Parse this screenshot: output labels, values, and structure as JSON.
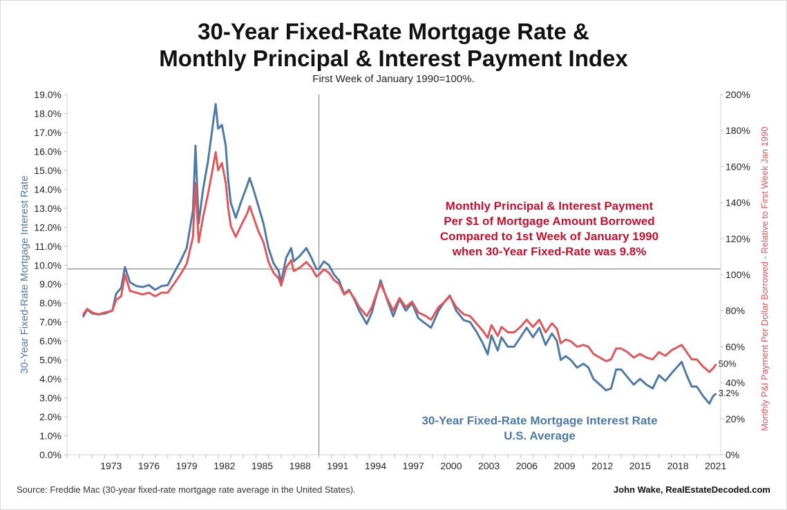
{
  "title_line1": "30-Year Fixed-Rate Mortgage Rate &",
  "title_line2": "Monthly Principal & Interest Payment Index",
  "subtitle": "First Week of January 1990=100%.",
  "footer": {
    "source": "Source: Freddie Mac (30-year fixed-rate mortgage rate average in the United States).",
    "credit": "John Wake, RealEstateDecoded.com"
  },
  "chart_data": {
    "type": "line",
    "x_range": [
      1970,
      2021.9
    ],
    "x_ticks": [
      "1973",
      "1976",
      "1979",
      "1982",
      "1985",
      "1988",
      "1991",
      "1994",
      "1997",
      "2000",
      "2003",
      "2006",
      "2009",
      "2012",
      "2015",
      "2018",
      "2021"
    ],
    "y_left": {
      "label": "30-Year Fixed-Rate Mortgage Interest Rate",
      "range": [
        0,
        19
      ],
      "ticks": [
        "0.0%",
        "1.0%",
        "2.0%",
        "3.0%",
        "4.0%",
        "5.0%",
        "6.0%",
        "7.0%",
        "8.0%",
        "9.0%",
        "10.0%",
        "11.0%",
        "12.0%",
        "13.0%",
        "14.0%",
        "15.0%",
        "16.0%",
        "17.0%",
        "18.0%",
        "19.0%"
      ],
      "color": "#4e79a7"
    },
    "y_right": {
      "label": "Monthly P&I Payment Per Dollar Borrowed - Relative to First Week Jan 1990",
      "range": [
        0,
        200
      ],
      "ticks": [
        "0%",
        "20%",
        "40%",
        "60%",
        "80%",
        "100%",
        "120%",
        "140%",
        "160%",
        "180%",
        "200%"
      ],
      "color": "#e15759"
    },
    "reference": {
      "x": 1990.0,
      "y_rate": 9.8
    },
    "annotations": {
      "payment_lines": [
        "Monthly Principal & Interest Payment",
        "Per $1 of Mortgage Amount Borrowed",
        "Compared to 1st Week of January 1990",
        "when 30-Year Fixed-Rate was 9.8%"
      ],
      "payment_color": "#c8102e",
      "rate_lines": [
        "30-Year Fixed-Rate Mortgage Interest Rate",
        "U.S. Average"
      ],
      "rate_color": "#4e79a7",
      "end_payment": "50%",
      "end_rate": "3.2%"
    },
    "series": [
      {
        "name": "30-Year Fixed-Rate Mortgage Interest Rate",
        "axis": "left",
        "color": "#4e79a7",
        "points": [
          [
            1971.3,
            7.3
          ],
          [
            1971.6,
            7.65
          ],
          [
            1972.0,
            7.45
          ],
          [
            1972.5,
            7.4
          ],
          [
            1973.0,
            7.45
          ],
          [
            1973.6,
            7.6
          ],
          [
            1973.9,
            8.5
          ],
          [
            1974.3,
            8.8
          ],
          [
            1974.6,
            9.9
          ],
          [
            1975.0,
            9.1
          ],
          [
            1975.5,
            8.9
          ],
          [
            1976.0,
            8.85
          ],
          [
            1976.5,
            8.95
          ],
          [
            1977.0,
            8.7
          ],
          [
            1977.5,
            8.9
          ],
          [
            1978.0,
            8.95
          ],
          [
            1978.5,
            9.6
          ],
          [
            1979.0,
            10.2
          ],
          [
            1979.5,
            10.9
          ],
          [
            1980.0,
            12.9
          ],
          [
            1980.2,
            16.3
          ],
          [
            1980.45,
            12.2
          ],
          [
            1980.8,
            14.0
          ],
          [
            1981.2,
            15.5
          ],
          [
            1981.6,
            17.5
          ],
          [
            1981.8,
            18.5
          ],
          [
            1982.0,
            17.2
          ],
          [
            1982.3,
            17.4
          ],
          [
            1982.6,
            16.3
          ],
          [
            1982.8,
            14.5
          ],
          [
            1983.0,
            13.3
          ],
          [
            1983.4,
            12.5
          ],
          [
            1983.8,
            13.3
          ],
          [
            1984.3,
            14.2
          ],
          [
            1984.5,
            14.6
          ],
          [
            1984.8,
            14.0
          ],
          [
            1985.2,
            13.1
          ],
          [
            1985.6,
            12.2
          ],
          [
            1986.0,
            10.9
          ],
          [
            1986.4,
            10.1
          ],
          [
            1986.8,
            9.7
          ],
          [
            1987.0,
            9.1
          ],
          [
            1987.4,
            10.4
          ],
          [
            1987.8,
            10.9
          ],
          [
            1988.0,
            10.2
          ],
          [
            1988.5,
            10.5
          ],
          [
            1989.0,
            10.9
          ],
          [
            1989.4,
            10.4
          ],
          [
            1989.8,
            9.8
          ],
          [
            1990.0,
            9.8
          ],
          [
            1990.4,
            10.2
          ],
          [
            1990.8,
            10.0
          ],
          [
            1991.2,
            9.5
          ],
          [
            1991.6,
            9.2
          ],
          [
            1992.0,
            8.5
          ],
          [
            1992.4,
            8.7
          ],
          [
            1992.8,
            8.2
          ],
          [
            1993.2,
            7.6
          ],
          [
            1993.8,
            6.9
          ],
          [
            1994.2,
            7.5
          ],
          [
            1994.6,
            8.5
          ],
          [
            1994.9,
            9.2
          ],
          [
            1995.4,
            8.2
          ],
          [
            1995.9,
            7.3
          ],
          [
            1996.4,
            8.2
          ],
          [
            1996.9,
            7.6
          ],
          [
            1997.4,
            8.0
          ],
          [
            1997.9,
            7.2
          ],
          [
            1998.5,
            6.9
          ],
          [
            1998.9,
            6.7
          ],
          [
            1999.5,
            7.6
          ],
          [
            2000.0,
            8.1
          ],
          [
            2000.4,
            8.4
          ],
          [
            2000.9,
            7.6
          ],
          [
            2001.5,
            7.1
          ],
          [
            2002.0,
            7.0
          ],
          [
            2002.5,
            6.5
          ],
          [
            2003.0,
            5.9
          ],
          [
            2003.4,
            5.3
          ],
          [
            2003.7,
            6.3
          ],
          [
            2004.2,
            5.5
          ],
          [
            2004.5,
            6.2
          ],
          [
            2005.0,
            5.7
          ],
          [
            2005.5,
            5.7
          ],
          [
            2006.0,
            6.2
          ],
          [
            2006.5,
            6.7
          ],
          [
            2007.0,
            6.2
          ],
          [
            2007.5,
            6.7
          ],
          [
            2008.0,
            5.8
          ],
          [
            2008.5,
            6.4
          ],
          [
            2008.9,
            6.0
          ],
          [
            2009.2,
            5.0
          ],
          [
            2009.6,
            5.2
          ],
          [
            2010.0,
            5.0
          ],
          [
            2010.5,
            4.6
          ],
          [
            2011.0,
            4.8
          ],
          [
            2011.4,
            4.6
          ],
          [
            2011.8,
            4.0
          ],
          [
            2012.3,
            3.7
          ],
          [
            2012.8,
            3.4
          ],
          [
            2013.2,
            3.5
          ],
          [
            2013.6,
            4.5
          ],
          [
            2014.0,
            4.5
          ],
          [
            2014.5,
            4.1
          ],
          [
            2015.0,
            3.7
          ],
          [
            2015.5,
            4.0
          ],
          [
            2016.0,
            3.7
          ],
          [
            2016.5,
            3.5
          ],
          [
            2017.0,
            4.2
          ],
          [
            2017.5,
            3.9
          ],
          [
            2018.0,
            4.3
          ],
          [
            2018.8,
            4.9
          ],
          [
            2019.2,
            4.2
          ],
          [
            2019.6,
            3.6
          ],
          [
            2020.0,
            3.6
          ],
          [
            2020.5,
            3.1
          ],
          [
            2021.0,
            2.7
          ],
          [
            2021.3,
            3.1
          ],
          [
            2021.5,
            3.2
          ]
        ]
      },
      {
        "name": "Monthly P&I Payment Per Dollar Borrowed - Relative to First Week Jan 1990",
        "axis": "right",
        "color": "#e15759",
        "points": [
          [
            1971.3,
            78
          ],
          [
            1971.6,
            81
          ],
          [
            1972.0,
            79
          ],
          [
            1972.5,
            78
          ],
          [
            1973.0,
            79
          ],
          [
            1973.6,
            80
          ],
          [
            1973.9,
            86
          ],
          [
            1974.3,
            88
          ],
          [
            1974.6,
            100
          ],
          [
            1975.0,
            91
          ],
          [
            1975.5,
            90
          ],
          [
            1976.0,
            89
          ],
          [
            1976.5,
            90
          ],
          [
            1977.0,
            88
          ],
          [
            1977.5,
            90
          ],
          [
            1978.0,
            90
          ],
          [
            1978.5,
            95
          ],
          [
            1979.0,
            100
          ],
          [
            1979.5,
            106
          ],
          [
            1980.0,
            121
          ],
          [
            1980.2,
            151
          ],
          [
            1980.45,
            118
          ],
          [
            1980.8,
            132
          ],
          [
            1981.2,
            145
          ],
          [
            1981.6,
            160
          ],
          [
            1981.8,
            168
          ],
          [
            1982.0,
            158
          ],
          [
            1982.3,
            162
          ],
          [
            1982.6,
            151
          ],
          [
            1982.8,
            137
          ],
          [
            1983.0,
            127
          ],
          [
            1983.4,
            121
          ],
          [
            1983.8,
            127
          ],
          [
            1984.3,
            134
          ],
          [
            1984.5,
            138
          ],
          [
            1984.8,
            132
          ],
          [
            1985.2,
            124
          ],
          [
            1985.6,
            118
          ],
          [
            1986.0,
            107
          ],
          [
            1986.4,
            101
          ],
          [
            1986.8,
            98
          ],
          [
            1987.0,
            94
          ],
          [
            1987.4,
            104
          ],
          [
            1987.8,
            108
          ],
          [
            1988.0,
            102
          ],
          [
            1988.5,
            104
          ],
          [
            1989.0,
            107
          ],
          [
            1989.4,
            104
          ],
          [
            1989.8,
            99
          ],
          [
            1990.0,
            100
          ],
          [
            1990.4,
            103
          ],
          [
            1990.8,
            101
          ],
          [
            1991.2,
            97
          ],
          [
            1991.6,
            95
          ],
          [
            1992.0,
            89
          ],
          [
            1992.4,
            91
          ],
          [
            1992.8,
            87
          ],
          [
            1993.2,
            82
          ],
          [
            1993.8,
            77
          ],
          [
            1994.2,
            82
          ],
          [
            1994.6,
            90
          ],
          [
            1994.9,
            95
          ],
          [
            1995.4,
            87
          ],
          [
            1995.9,
            80
          ],
          [
            1996.4,
            87
          ],
          [
            1996.9,
            82
          ],
          [
            1997.4,
            85
          ],
          [
            1997.9,
            79
          ],
          [
            1998.5,
            77
          ],
          [
            1998.9,
            75
          ],
          [
            1999.5,
            82
          ],
          [
            2000.0,
            85
          ],
          [
            2000.4,
            88
          ],
          [
            2000.9,
            82
          ],
          [
            2001.5,
            78
          ],
          [
            2002.0,
            77
          ],
          [
            2002.5,
            73
          ],
          [
            2003.0,
            69
          ],
          [
            2003.4,
            65
          ],
          [
            2003.7,
            72
          ],
          [
            2004.2,
            66
          ],
          [
            2004.5,
            71
          ],
          [
            2005.0,
            68
          ],
          [
            2005.5,
            68
          ],
          [
            2006.0,
            71
          ],
          [
            2006.5,
            75
          ],
          [
            2007.0,
            71
          ],
          [
            2007.5,
            75
          ],
          [
            2008.0,
            68
          ],
          [
            2008.5,
            73
          ],
          [
            2008.9,
            70
          ],
          [
            2009.2,
            62
          ],
          [
            2009.6,
            64
          ],
          [
            2010.0,
            63
          ],
          [
            2010.5,
            60
          ],
          [
            2011.0,
            61
          ],
          [
            2011.4,
            60
          ],
          [
            2011.8,
            56
          ],
          [
            2012.3,
            54
          ],
          [
            2012.8,
            52
          ],
          [
            2013.2,
            53
          ],
          [
            2013.6,
            59
          ],
          [
            2014.0,
            59
          ],
          [
            2014.5,
            57
          ],
          [
            2015.0,
            54
          ],
          [
            2015.5,
            56
          ],
          [
            2016.0,
            54
          ],
          [
            2016.5,
            53
          ],
          [
            2017.0,
            57
          ],
          [
            2017.5,
            55
          ],
          [
            2018.0,
            58
          ],
          [
            2018.8,
            61
          ],
          [
            2019.2,
            57
          ],
          [
            2019.6,
            53
          ],
          [
            2020.0,
            53
          ],
          [
            2020.5,
            49
          ],
          [
            2021.0,
            46
          ],
          [
            2021.3,
            48
          ],
          [
            2021.5,
            50
          ]
        ]
      }
    ]
  }
}
